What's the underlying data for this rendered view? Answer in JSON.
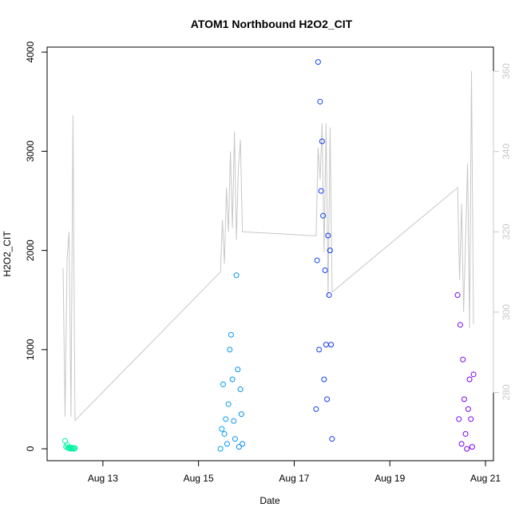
{
  "chart_data": {
    "type": "scatter",
    "title": "ATOM1 Northbound H2O2_CIT",
    "xlabel": "Date",
    "ylabel": "H2O2_CIT",
    "xlim": [
      "2016-08-11T20:00",
      "2016-08-21T04:00"
    ],
    "ylim": [
      -120,
      4050
    ],
    "y2lim": [
      263,
      366
    ],
    "x_ticks": [
      {
        "label": "Aug 13",
        "value": "2016-08-13T00:00"
      },
      {
        "label": "Aug 15",
        "value": "2016-08-15T00:00"
      },
      {
        "label": "Aug 17",
        "value": "2016-08-17T00:00"
      },
      {
        "label": "Aug 19",
        "value": "2016-08-19T00:00"
      },
      {
        "label": "Aug 21",
        "value": "2016-08-21T00:00"
      }
    ],
    "y_ticks": [
      0,
      1000,
      2000,
      3000,
      4000
    ],
    "y2_ticks": [
      280,
      300,
      320,
      340,
      360
    ],
    "grid": false,
    "legend": "none",
    "colors": {
      "line_series": "#c8c8c8",
      "points_gradient": [
        "#00f5a0",
        "#00b4f0",
        "#1030f0",
        "#8000f0"
      ]
    },
    "series": [
      {
        "kind": "points",
        "axis": "left",
        "x": [
          "2016-08-12T05:00",
          "2016-08-12T05:30",
          "2016-08-12T06:00",
          "2016-08-12T06:30",
          "2016-08-12T07:00",
          "2016-08-12T07:30",
          "2016-08-12T08:00",
          "2016-08-12T08:30",
          "2016-08-12T09:00",
          "2016-08-12T09:30",
          "2016-08-12T10:00",
          "2016-08-15T11:00",
          "2016-08-15T11:40",
          "2016-08-15T12:20",
          "2016-08-15T13:00",
          "2016-08-15T13:40",
          "2016-08-15T14:20",
          "2016-08-15T15:00",
          "2016-08-15T15:40",
          "2016-08-15T16:20",
          "2016-08-15T17:00",
          "2016-08-15T17:40",
          "2016-08-15T18:20",
          "2016-08-15T19:00",
          "2016-08-15T19:40",
          "2016-08-15T20:20",
          "2016-08-15T21:00",
          "2016-08-15T21:30",
          "2016-08-15T22:00",
          "2016-08-17T11:00",
          "2016-08-17T11:30",
          "2016-08-17T12:00",
          "2016-08-17T12:30",
          "2016-08-17T13:00",
          "2016-08-17T13:30",
          "2016-08-17T14:00",
          "2016-08-17T14:30",
          "2016-08-17T15:00",
          "2016-08-17T15:30",
          "2016-08-17T16:00",
          "2016-08-17T16:30",
          "2016-08-17T17:00",
          "2016-08-17T17:30",
          "2016-08-17T18:00",
          "2016-08-17T18:30",
          "2016-08-17T19:00",
          "2016-08-20T10:00",
          "2016-08-20T10:40",
          "2016-08-20T11:20",
          "2016-08-20T12:00",
          "2016-08-20T12:40",
          "2016-08-20T13:20",
          "2016-08-20T14:00",
          "2016-08-20T14:40",
          "2016-08-20T15:20",
          "2016-08-20T16:00",
          "2016-08-20T16:40",
          "2016-08-20T17:20",
          "2016-08-20T18:00"
        ],
        "y": [
          80,
          20,
          40,
          10,
          5,
          15,
          0,
          10,
          5,
          0,
          8,
          0,
          200,
          650,
          150,
          300,
          50,
          450,
          1000,
          1150,
          700,
          280,
          100,
          1750,
          800,
          20,
          600,
          350,
          50,
          400,
          1900,
          3900,
          1000,
          3500,
          2600,
          3100,
          2350,
          700,
          1800,
          1050,
          500,
          2150,
          1550,
          2000,
          1050,
          100,
          1550,
          300,
          1250,
          50,
          900,
          500,
          150,
          0,
          400,
          700,
          300,
          20,
          750
        ]
      },
      {
        "kind": "line",
        "axis": "right",
        "x": [
          "2016-08-12T04:00",
          "2016-08-12T05:00",
          "2016-08-12T06:00",
          "2016-08-12T07:00",
          "2016-08-12T08:00",
          "2016-08-12T09:00",
          "2016-08-12T10:00",
          "2016-08-15T11:00",
          "2016-08-15T12:00",
          "2016-08-15T13:00",
          "2016-08-15T14:00",
          "2016-08-15T15:00",
          "2016-08-15T16:00",
          "2016-08-15T17:00",
          "2016-08-15T18:00",
          "2016-08-15T19:00",
          "2016-08-15T20:00",
          "2016-08-15T21:00",
          "2016-08-15T22:00",
          "2016-08-17T11:00",
          "2016-08-17T12:00",
          "2016-08-17T13:00",
          "2016-08-17T14:00",
          "2016-08-17T15:00",
          "2016-08-17T16:00",
          "2016-08-17T17:00",
          "2016-08-17T18:00",
          "2016-08-17T19:00",
          "2016-08-20T10:00",
          "2016-08-20T11:00",
          "2016-08-20T12:00",
          "2016-08-20T13:00",
          "2016-08-20T14:00",
          "2016-08-20T15:00",
          "2016-08-20T16:00",
          "2016-08-20T17:00",
          "2016-08-20T18:00"
        ],
        "y": [
          311,
          274,
          313,
          320,
          274,
          349,
          273,
          310,
          323,
          312,
          331,
          320,
          340,
          321,
          345,
          318,
          336,
          343,
          320,
          319,
          341,
          333,
          347,
          315,
          347,
          304,
          346,
          305,
          331,
          308,
          327,
          300,
          318,
          337,
          296,
          360,
          297
        ]
      }
    ]
  }
}
